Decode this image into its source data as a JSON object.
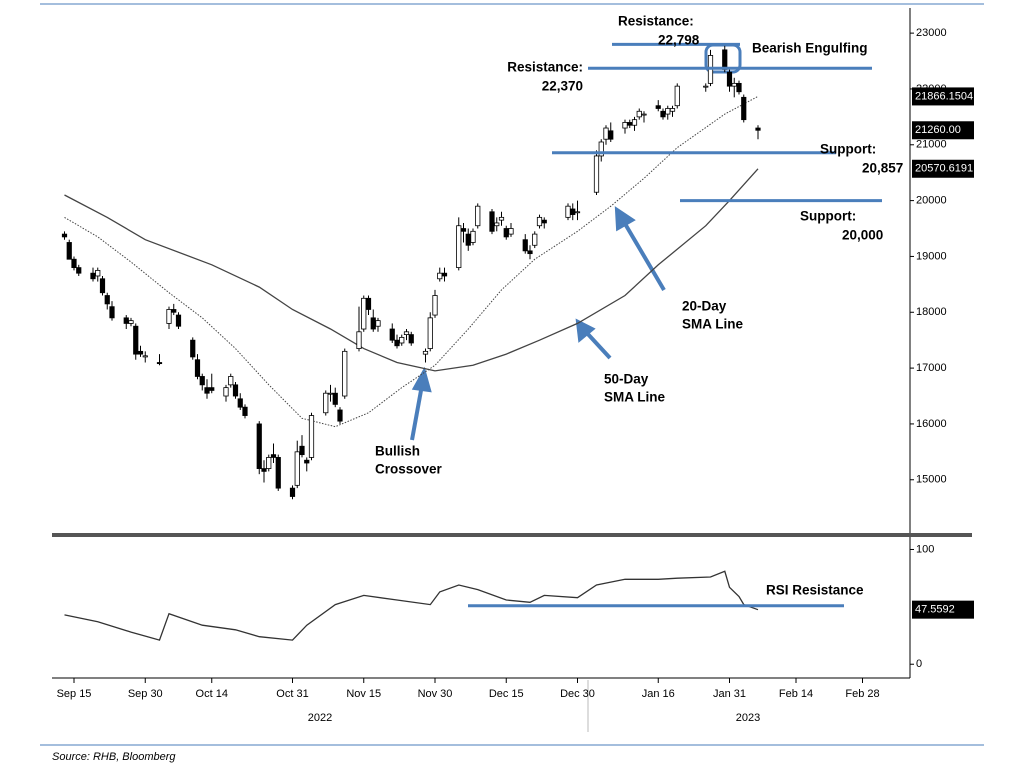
{
  "chart_data": [
    {
      "type": "candlestick",
      "xlim": [
        "2022-09-11",
        "2023-03-10"
      ],
      "ylim": [
        14100,
        23450
      ],
      "yticks": [
        15000,
        16000,
        17000,
        18000,
        19000,
        20000,
        21000,
        22000,
        23000
      ],
      "x": [
        "2022-09-13",
        "2022-09-14",
        "2022-09-15",
        "2022-09-16",
        "2022-09-19",
        "2022-09-20",
        "2022-09-21",
        "2022-09-22",
        "2022-09-23",
        "2022-09-26",
        "2022-09-27",
        "2022-09-28",
        "2022-09-29",
        "2022-09-30",
        "2022-10-03",
        "2022-10-05",
        "2022-10-06",
        "2022-10-07",
        "2022-10-10",
        "2022-10-11",
        "2022-10-12",
        "2022-10-13",
        "2022-10-14",
        "2022-10-17",
        "2022-10-18",
        "2022-10-19",
        "2022-10-20",
        "2022-10-21",
        "2022-10-24",
        "2022-10-25",
        "2022-10-26",
        "2022-10-27",
        "2022-10-28",
        "2022-10-31",
        "2022-11-01",
        "2022-11-02",
        "2022-11-03",
        "2022-11-04",
        "2022-11-07",
        "2022-11-08",
        "2022-11-09",
        "2022-11-10",
        "2022-11-11",
        "2022-11-14",
        "2022-11-15",
        "2022-11-16",
        "2022-11-17",
        "2022-11-18",
        "2022-11-21",
        "2022-11-22",
        "2022-11-23",
        "2022-11-24",
        "2022-11-25",
        "2022-11-28",
        "2022-11-29",
        "2022-11-30",
        "2022-12-01",
        "2022-12-02",
        "2022-12-05",
        "2022-12-06",
        "2022-12-07",
        "2022-12-08",
        "2022-12-09",
        "2022-12-12",
        "2022-12-13",
        "2022-12-14",
        "2022-12-15",
        "2022-12-16",
        "2022-12-19",
        "2022-12-20",
        "2022-12-21",
        "2022-12-22",
        "2022-12-23",
        "2022-12-28",
        "2022-12-29",
        "2022-12-30",
        "2023-01-03",
        "2023-01-04",
        "2023-01-05",
        "2023-01-06",
        "2023-01-09",
        "2023-01-10",
        "2023-01-11",
        "2023-01-12",
        "2023-01-13",
        "2023-01-16",
        "2023-01-17",
        "2023-01-18",
        "2023-01-19",
        "2023-01-20",
        "2023-01-26",
        "2023-01-27",
        "2023-01-30",
        "2023-01-31",
        "2023-02-01",
        "2023-02-02",
        "2023-02-03",
        "2023-02-06"
      ],
      "open": [
        19400,
        19250,
        18950,
        18800,
        18700,
        18650,
        18600,
        18300,
        18100,
        17900,
        17800,
        17750,
        17300,
        17200,
        17100,
        17800,
        18050,
        17950,
        17500,
        17150,
        16850,
        16650,
        16650,
        16500,
        16700,
        16700,
        16450,
        16300,
        16000,
        15200,
        15200,
        15450,
        15400,
        14850,
        14900,
        15600,
        15350,
        15400,
        16200,
        16550,
        16550,
        16250,
        16500,
        17350,
        17700,
        18250,
        17900,
        17750,
        17700,
        17500,
        17450,
        17600,
        17600,
        17250,
        17350,
        17950,
        18600,
        18700,
        18800,
        19500,
        19400,
        19250,
        19550,
        19800,
        19550,
        19650,
        19500,
        19400,
        19300,
        19100,
        19200,
        19550,
        19650,
        19700,
        19850,
        19800,
        20150,
        20800,
        21100,
        21250,
        21300,
        21400,
        21350,
        21500,
        21550,
        21700,
        21600,
        21550,
        21600,
        21700,
        22050,
        22100,
        22700,
        22300,
        22050,
        22100,
        21850,
        21300
      ],
      "high": [
        19450,
        19300,
        19000,
        18850,
        18800,
        18800,
        18650,
        18350,
        18200,
        17950,
        17900,
        17800,
        17400,
        17300,
        17250,
        18100,
        18150,
        18000,
        17550,
        17250,
        16900,
        16800,
        16900,
        16700,
        16900,
        16750,
        16550,
        16350,
        16050,
        15350,
        15450,
        15650,
        15450,
        14900,
        15700,
        15800,
        15400,
        16200,
        16600,
        16700,
        16650,
        16300,
        17350,
        18100,
        18300,
        18300,
        18050,
        17900,
        17800,
        17600,
        17600,
        17700,
        17650,
        17350,
        18000,
        18400,
        18800,
        18800,
        19700,
        19600,
        19500,
        19500,
        19950,
        19850,
        19700,
        19800,
        19550,
        19600,
        19400,
        19200,
        19450,
        19750,
        19700,
        19950,
        19950,
        20000,
        20900,
        21100,
        21350,
        21400,
        21450,
        21450,
        21500,
        21650,
        21600,
        21800,
        21650,
        21700,
        21700,
        22100,
        22100,
        22700,
        22798,
        22350,
        22200,
        22150,
        21900,
        21350
      ],
      "low": [
        19300,
        18950,
        18750,
        18650,
        18550,
        18550,
        18300,
        18050,
        17850,
        17700,
        17750,
        17150,
        17200,
        17100,
        17050,
        17700,
        17950,
        17700,
        17150,
        16800,
        16600,
        16450,
        16550,
        16400,
        16650,
        16450,
        16250,
        16100,
        15100,
        14950,
        15150,
        15300,
        14800,
        14650,
        14850,
        15400,
        15150,
        15350,
        16150,
        16400,
        16300,
        16000,
        16450,
        17300,
        17650,
        17950,
        17650,
        17650,
        17450,
        17350,
        17400,
        17500,
        17400,
        17100,
        17300,
        17900,
        18550,
        18550,
        18750,
        19250,
        19100,
        19200,
        19500,
        19400,
        19450,
        19550,
        19300,
        19350,
        19050,
        18950,
        19150,
        19500,
        19500,
        19650,
        19650,
        19650,
        20100,
        20700,
        21000,
        21050,
        21200,
        21300,
        21250,
        21450,
        21400,
        21600,
        21450,
        21450,
        21500,
        21650,
        21950,
        22050,
        22300,
        21950,
        21850,
        21900,
        21400,
        21100
      ],
      "close": [
        19350,
        18950,
        18800,
        18700,
        18600,
        18750,
        18350,
        18150,
        17900,
        17800,
        17850,
        17250,
        17250,
        17220,
        17080,
        18050,
        18000,
        17750,
        17200,
        16850,
        16700,
        16550,
        16600,
        16650,
        16850,
        16500,
        16300,
        16150,
        15200,
        15150,
        15400,
        15400,
        14850,
        14700,
        15500,
        15450,
        15300,
        16150,
        16550,
        16550,
        16350,
        16050,
        17300,
        17650,
        18250,
        18050,
        17700,
        17850,
        17500,
        17400,
        17550,
        17650,
        17450,
        17300,
        17900,
        18300,
        18700,
        18650,
        19550,
        19450,
        19200,
        19450,
        19900,
        19450,
        19600,
        19700,
        19350,
        19500,
        19100,
        19050,
        19400,
        19700,
        19600,
        19900,
        19750,
        19800,
        20800,
        21050,
        21300,
        21100,
        21400,
        21350,
        21450,
        21600,
        21550,
        21650,
        21500,
        21650,
        21650,
        22050,
        22050,
        22600,
        22350,
        22050,
        22100,
        21950,
        21450,
        21260
      ],
      "up_color": "#ffffff",
      "down_color": "#000000",
      "series": [
        {
          "color": "#444444",
          "style": "dotted",
          "x": [
            "2022-09-13",
            "2022-09-20",
            "2022-09-27",
            "2022-10-05",
            "2022-10-12",
            "2022-10-19",
            "2022-10-26",
            "2022-11-02",
            "2022-11-09",
            "2022-11-16",
            "2022-11-23",
            "2022-11-30",
            "2022-12-07",
            "2022-12-14",
            "2022-12-21",
            "2022-12-30",
            "2023-01-06",
            "2023-01-13",
            "2023-01-20",
            "2023-01-30",
            "2023-02-06"
          ],
          "values": [
            19700,
            19350,
            18900,
            18350,
            17900,
            17350,
            16700,
            16100,
            15950,
            16200,
            16650,
            17050,
            17700,
            18400,
            18950,
            19450,
            19900,
            20400,
            20950,
            21550,
            21866.1504
          ]
        },
        {
          "color": "#444444",
          "style": "solid",
          "x": [
            "2022-09-13",
            "2022-09-22",
            "2022-09-30",
            "2022-10-14",
            "2022-10-24",
            "2022-10-31",
            "2022-11-08",
            "2022-11-15",
            "2022-11-22",
            "2022-11-30",
            "2022-12-08",
            "2022-12-15",
            "2022-12-22",
            "2022-12-30",
            "2023-01-09",
            "2023-01-16",
            "2023-01-26",
            "2023-01-31",
            "2023-02-06"
          ],
          "values": [
            20100,
            19700,
            19300,
            18850,
            18450,
            18050,
            17700,
            17350,
            17100,
            16950,
            17050,
            17250,
            17500,
            17800,
            18300,
            18850,
            19550,
            20000,
            20570.6191
          ]
        }
      ],
      "price_tags": [
        {
          "value": 21866.1504
        },
        {
          "value": 21260,
          "label": "21260.00"
        },
        {
          "value": 20570.6191
        }
      ],
      "levels": [
        {
          "label": "Resistance:",
          "value": 22798,
          "value_label": "22,798"
        },
        {
          "label": "Resistance:",
          "value": 22370,
          "value_label": "22,370"
        },
        {
          "label": "Support:",
          "value": 20857,
          "value_label": "20,857"
        },
        {
          "label": "Support:",
          "value": 20000,
          "value_label": "20,000"
        }
      ],
      "annotations": [
        {
          "lines": [
            "Bearish Engulfing"
          ]
        },
        {
          "lines": [
            "20-Day",
            "SMA Line"
          ]
        },
        {
          "lines": [
            "50-Day",
            "SMA Line"
          ]
        },
        {
          "lines": [
            "Bullish",
            "Crossover"
          ]
        }
      ]
    },
    {
      "type": "line",
      "xlim": [
        "2022-09-11",
        "2023-03-10"
      ],
      "ylim": [
        -12,
        110
      ],
      "yticks": [
        0,
        100
      ],
      "xticks": [
        {
          "value": "2022-09-15",
          "label": "Sep 15"
        },
        {
          "value": "2022-09-30",
          "label": "Sep 30"
        },
        {
          "value": "2022-10-14",
          "label": "Oct 14"
        },
        {
          "value": "2022-10-31",
          "label": "Oct 31"
        },
        {
          "value": "2022-11-15",
          "label": "Nov 15"
        },
        {
          "value": "2022-11-30",
          "label": "Nov 30"
        },
        {
          "value": "2022-12-15",
          "label": "Dec 15"
        },
        {
          "value": "2022-12-30",
          "label": "Dec 30"
        },
        {
          "value": "2023-01-16",
          "label": "Jan 16"
        },
        {
          "value": "2023-01-31",
          "label": "Jan 31"
        },
        {
          "value": "2023-02-14",
          "label": "Feb 14"
        },
        {
          "value": "2023-02-28",
          "label": "Feb 28"
        }
      ],
      "years": [
        "2022",
        "2023"
      ],
      "series": [
        {
          "color": "#333333",
          "x": [
            "2022-09-13",
            "2022-09-20",
            "2022-09-27",
            "2022-10-03",
            "2022-10-05",
            "2022-10-12",
            "2022-10-19",
            "2022-10-24",
            "2022-10-31",
            "2022-11-03",
            "2022-11-09",
            "2022-11-15",
            "2022-11-22",
            "2022-11-29",
            "2022-12-01",
            "2022-12-05",
            "2022-12-09",
            "2022-12-15",
            "2022-12-20",
            "2022-12-23",
            "2022-12-30",
            "2023-01-03",
            "2023-01-09",
            "2023-01-16",
            "2023-01-20",
            "2023-01-27",
            "2023-01-30",
            "2023-01-31",
            "2023-02-02",
            "2023-02-03",
            "2023-02-06"
          ],
          "values": [
            43,
            37,
            28,
            21,
            44,
            34,
            30,
            24,
            21,
            34,
            52,
            60,
            56,
            52,
            63,
            69,
            65,
            56,
            54,
            60,
            58,
            69,
            74,
            74,
            75,
            76,
            81,
            67,
            59,
            52,
            47.5592
          ]
        }
      ],
      "price_tags": [
        {
          "value": 47.5592
        }
      ],
      "levels": [
        {
          "label": "RSI Resistance",
          "value": 51
        }
      ]
    }
  ],
  "source": "Source: RHB, Bloomberg"
}
